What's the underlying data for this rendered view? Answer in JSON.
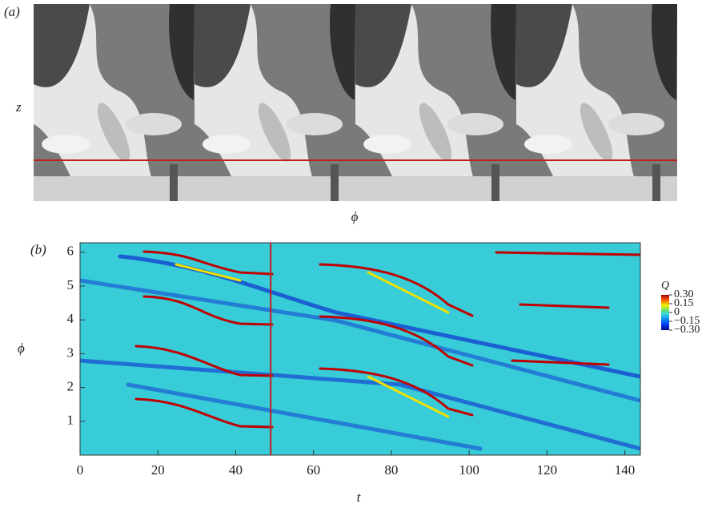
{
  "panel_a": {
    "label": "(a)",
    "y_label": "z",
    "x_label": "ϕ"
  },
  "chart_data": {
    "type": "heatmap",
    "label": "(b)",
    "x_label": "t",
    "y_label": "ϕ",
    "xlim": [
      0,
      144
    ],
    "xticks": [
      0,
      20,
      40,
      60,
      80,
      100,
      120,
      140
    ],
    "ylim": [
      0,
      6.28
    ],
    "yticks": [
      1,
      2,
      3,
      4,
      5,
      6
    ],
    "vertical_line": {
      "x": 49,
      "color": "#c0201c"
    },
    "colorbar": {
      "title": "Q",
      "lim": [
        -0.3,
        0.3
      ],
      "ticks": [
        {
          "value": 0.3,
          "label": "0.30"
        },
        {
          "value": 0.15,
          "label": "0.15"
        },
        0,
        {
          "value": -0.15,
          "label": "−0.15"
        },
        {
          "value": -0.3,
          "label": "−0.30"
        }
      ],
      "colors": [
        "#00008f",
        "#0050ff",
        "#2fd6e0",
        "#f0f000",
        "#ff6000",
        "#9a0000"
      ]
    }
  }
}
